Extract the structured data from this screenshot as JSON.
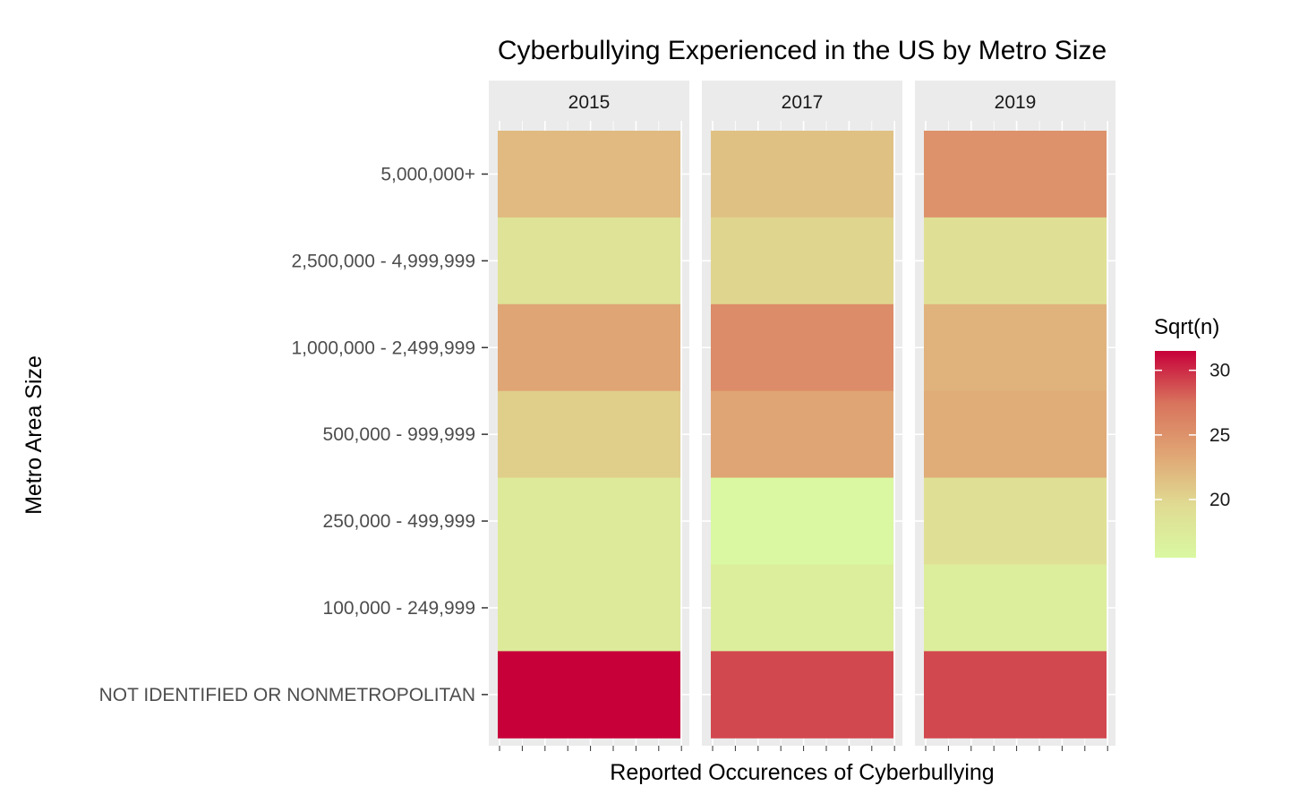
{
  "chart_data": {
    "type": "heatmap",
    "title": "Cyberbullying Experienced in the US by Metro Size",
    "xlabel": "Reported Occurences of Cyberbullying",
    "ylabel": "Metro Area Size",
    "facets": [
      "2015",
      "2017",
      "2019"
    ],
    "categories": [
      "5,000,000+",
      "2,500,000 - 4,999,999",
      "1,000,000 - 2,499,999",
      "500,000 - 999,999",
      "250,000 - 499,999",
      "100,000 - 249,999",
      "NOT IDENTIFIED OR NONMETROPOLITAN"
    ],
    "series": [
      {
        "name": "2015",
        "values": [
          22.0,
          18.5,
          23.5,
          20.5,
          17.5,
          17.5,
          31.5
        ]
      },
      {
        "name": "2017",
        "values": [
          21.5,
          20.0,
          25.5,
          23.5,
          15.5,
          17.0,
          29.0
        ]
      },
      {
        "name": "2019",
        "values": [
          25.0,
          19.0,
          22.5,
          23.0,
          19.0,
          17.0,
          29.0
        ]
      }
    ],
    "legend": {
      "title": "Sqrt(n)",
      "ticks": [
        20,
        25,
        30
      ],
      "min": 15.5,
      "max": 31.5,
      "placement": "right"
    },
    "colors": {
      "low": "#d9f8a1",
      "mid1": "#e0dc93",
      "mid2": "#e0a574",
      "high_mid": "#d8735c",
      "high": "#c7003a",
      "panel_bg": "#ebebeb",
      "strip_bg": "#ebebeb"
    }
  }
}
